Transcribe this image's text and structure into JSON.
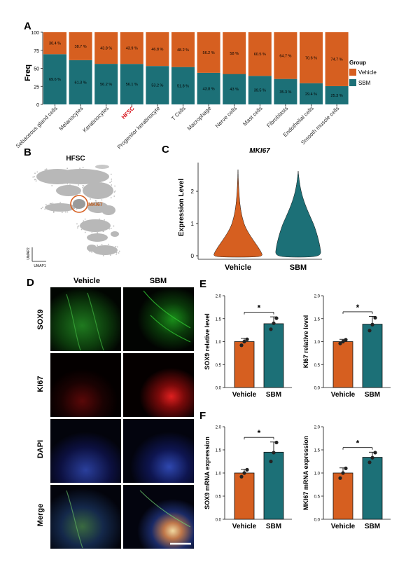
{
  "panels": {
    "A": "A",
    "B": "B",
    "C": "C",
    "D": "D",
    "E": "E",
    "F": "F"
  },
  "colors": {
    "vehicle": "#d65f20",
    "sbm": "#1c7077",
    "highlight": "#d8121b"
  },
  "panel_a": {
    "ylabel": "Freq",
    "yticks": [
      "0",
      "25",
      "50",
      "75",
      "100"
    ],
    "legend_title": "Group",
    "legend": [
      "Vehicle",
      "SBM"
    ],
    "highlight": "HFSC"
  },
  "panel_b": {
    "title": "HFSC",
    "cluster_label": "MKI67",
    "axis_y": "UMAP2",
    "axis_x": "UMAP1"
  },
  "panel_d": {
    "columns": [
      "Vehicle",
      "SBM"
    ],
    "rows": [
      "SOX9",
      "KI67",
      "DAPI",
      "Merge"
    ]
  },
  "chart_data": [
    {
      "type": "bar",
      "title": "",
      "ylabel": "Freq",
      "stacked": true,
      "ylim": [
        0,
        100
      ],
      "categories": [
        "Sebaceous gland cells",
        "Melanocytes",
        "Keratinocytes",
        "HFSC",
        "Progenitor keratinocyte",
        "T Cells",
        "Macrophage",
        "Nerve cells",
        "Mast cells",
        "Fibroblasts",
        "Endothelial cells",
        "Smooth muscle cells"
      ],
      "series": [
        {
          "name": "SBM",
          "values": [
            69.6,
            61.3,
            56.2,
            56.1,
            53.2,
            51.8,
            43.8,
            43,
            39.5,
            35.3,
            29.4,
            25.3
          ],
          "labels": [
            "69.6 %",
            "61.3 %",
            "56.2 %",
            "56.1 %",
            "53.2 %",
            "51.8 %",
            "43.8 %",
            "43 %",
            "39.5 %",
            "35.3 %",
            "29.4 %",
            "25.3 %"
          ]
        },
        {
          "name": "Vehicle",
          "values": [
            30.4,
            38.7,
            43.8,
            43.9,
            46.8,
            48.2,
            56.2,
            58,
            60.5,
            64.7,
            70.6,
            74.7
          ],
          "labels": [
            "30.4 %",
            "38.7 %",
            "43.8 %",
            "43.9 %",
            "46.8 %",
            "48.2 %",
            "56.2 %",
            "58 %",
            "60.5 %",
            "64.7 %",
            "70.6 %",
            "74.7 %"
          ]
        }
      ],
      "legend_placement": "right"
    },
    {
      "type": "violin",
      "title": "MKI67",
      "ylabel": "Expression Level",
      "categories": [
        "Vehicle",
        "SBM"
      ],
      "yticks": [
        "0",
        "1",
        "2"
      ],
      "ylim": [
        0,
        2.75
      ]
    },
    {
      "type": "bar",
      "title": "",
      "ylabel": "SOX9 relative level",
      "categories": [
        "Vehicle",
        "SBM"
      ],
      "values": [
        1.0,
        1.39
      ],
      "errors": [
        0.07,
        0.15
      ],
      "points": [
        [
          0.92,
          1.0,
          1.05
        ],
        [
          1.27,
          1.4,
          1.51
        ]
      ],
      "yticks": [
        "0.0",
        "0.5",
        "1.0",
        "1.5",
        "2.0"
      ],
      "ylim": [
        0,
        2.0
      ],
      "significance": "*"
    },
    {
      "type": "bar",
      "title": "",
      "ylabel": "KI67 relative level",
      "categories": [
        "Vehicle",
        "SBM"
      ],
      "values": [
        1.0,
        1.38
      ],
      "errors": [
        0.05,
        0.17
      ],
      "points": [
        [
          0.96,
          1.0,
          1.04
        ],
        [
          1.24,
          1.37,
          1.52
        ]
      ],
      "yticks": [
        "0.0",
        "0.5",
        "1.0",
        "1.5",
        "2.0"
      ],
      "ylim": [
        0,
        2.0
      ],
      "significance": "*"
    },
    {
      "type": "bar",
      "title": "",
      "ylabel": "SOX9 mRNA expression",
      "categories": [
        "Vehicle",
        "SBM"
      ],
      "values": [
        1.0,
        1.45
      ],
      "errors": [
        0.08,
        0.22
      ],
      "points": [
        [
          0.92,
          1.0,
          1.07
        ],
        [
          1.25,
          1.44,
          1.66
        ]
      ],
      "yticks": [
        "0.0",
        "0.5",
        "1.0",
        "1.5",
        "2.0"
      ],
      "ylim": [
        0,
        2.0
      ],
      "significance": "*"
    },
    {
      "type": "bar",
      "title": "",
      "ylabel": "MKI67 mRNA expression",
      "categories": [
        "Vehicle",
        "SBM"
      ],
      "values": [
        1.0,
        1.34
      ],
      "errors": [
        0.11,
        0.11
      ],
      "points": [
        [
          0.89,
          1.0,
          1.1
        ],
        [
          1.23,
          1.33,
          1.44
        ]
      ],
      "yticks": [
        "0.0",
        "0.5",
        "1.0",
        "1.5",
        "2.0"
      ],
      "ylim": [
        0,
        2.0
      ],
      "significance": "*"
    }
  ]
}
